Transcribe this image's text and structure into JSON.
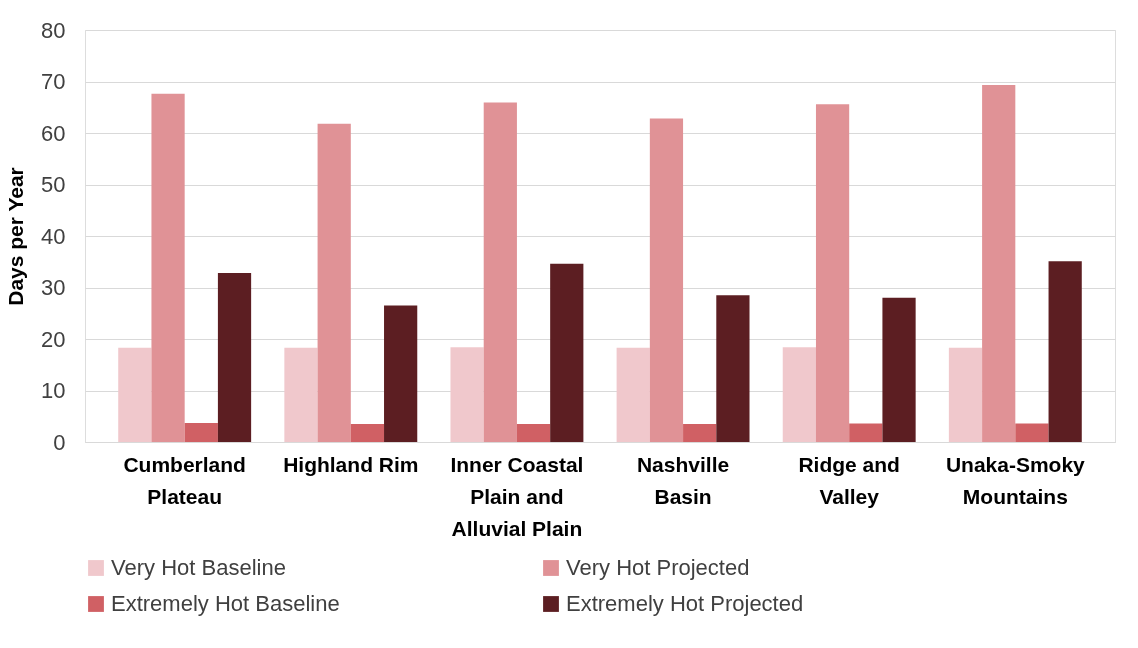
{
  "chart_data": {
    "type": "bar",
    "ylabel": "Days per Year",
    "categories": [
      "Cumberland Plateau",
      "Highland Rim",
      "Inner Coastal Plain and Alluvial Plain",
      "Nashville Basin",
      "Ridge and Valley",
      "Unaka-Smoky Mountains"
    ],
    "series": [
      {
        "name": "Very Hot Baseline",
        "color": "#f0c8cc",
        "values": [
          18.3,
          18.3,
          18.4,
          18.3,
          18.4,
          18.3
        ]
      },
      {
        "name": "Very Hot Projected",
        "color": "#e09296",
        "values": [
          67.6,
          61.8,
          65.9,
          62.8,
          65.6,
          69.3
        ]
      },
      {
        "name": "Extremely Hot Baseline",
        "color": "#d06064",
        "values": [
          3.7,
          3.5,
          3.5,
          3.5,
          3.6,
          3.6
        ]
      },
      {
        "name": "Extremely Hot Projected",
        "color": "#5c1e22",
        "values": [
          32.8,
          26.5,
          34.6,
          28.5,
          28.0,
          35.1
        ]
      }
    ],
    "ylim": [
      0,
      80
    ],
    "yticks": [
      0,
      10,
      20,
      30,
      40,
      50,
      60,
      70,
      80
    ],
    "grid": "y",
    "legend": "bottom"
  }
}
